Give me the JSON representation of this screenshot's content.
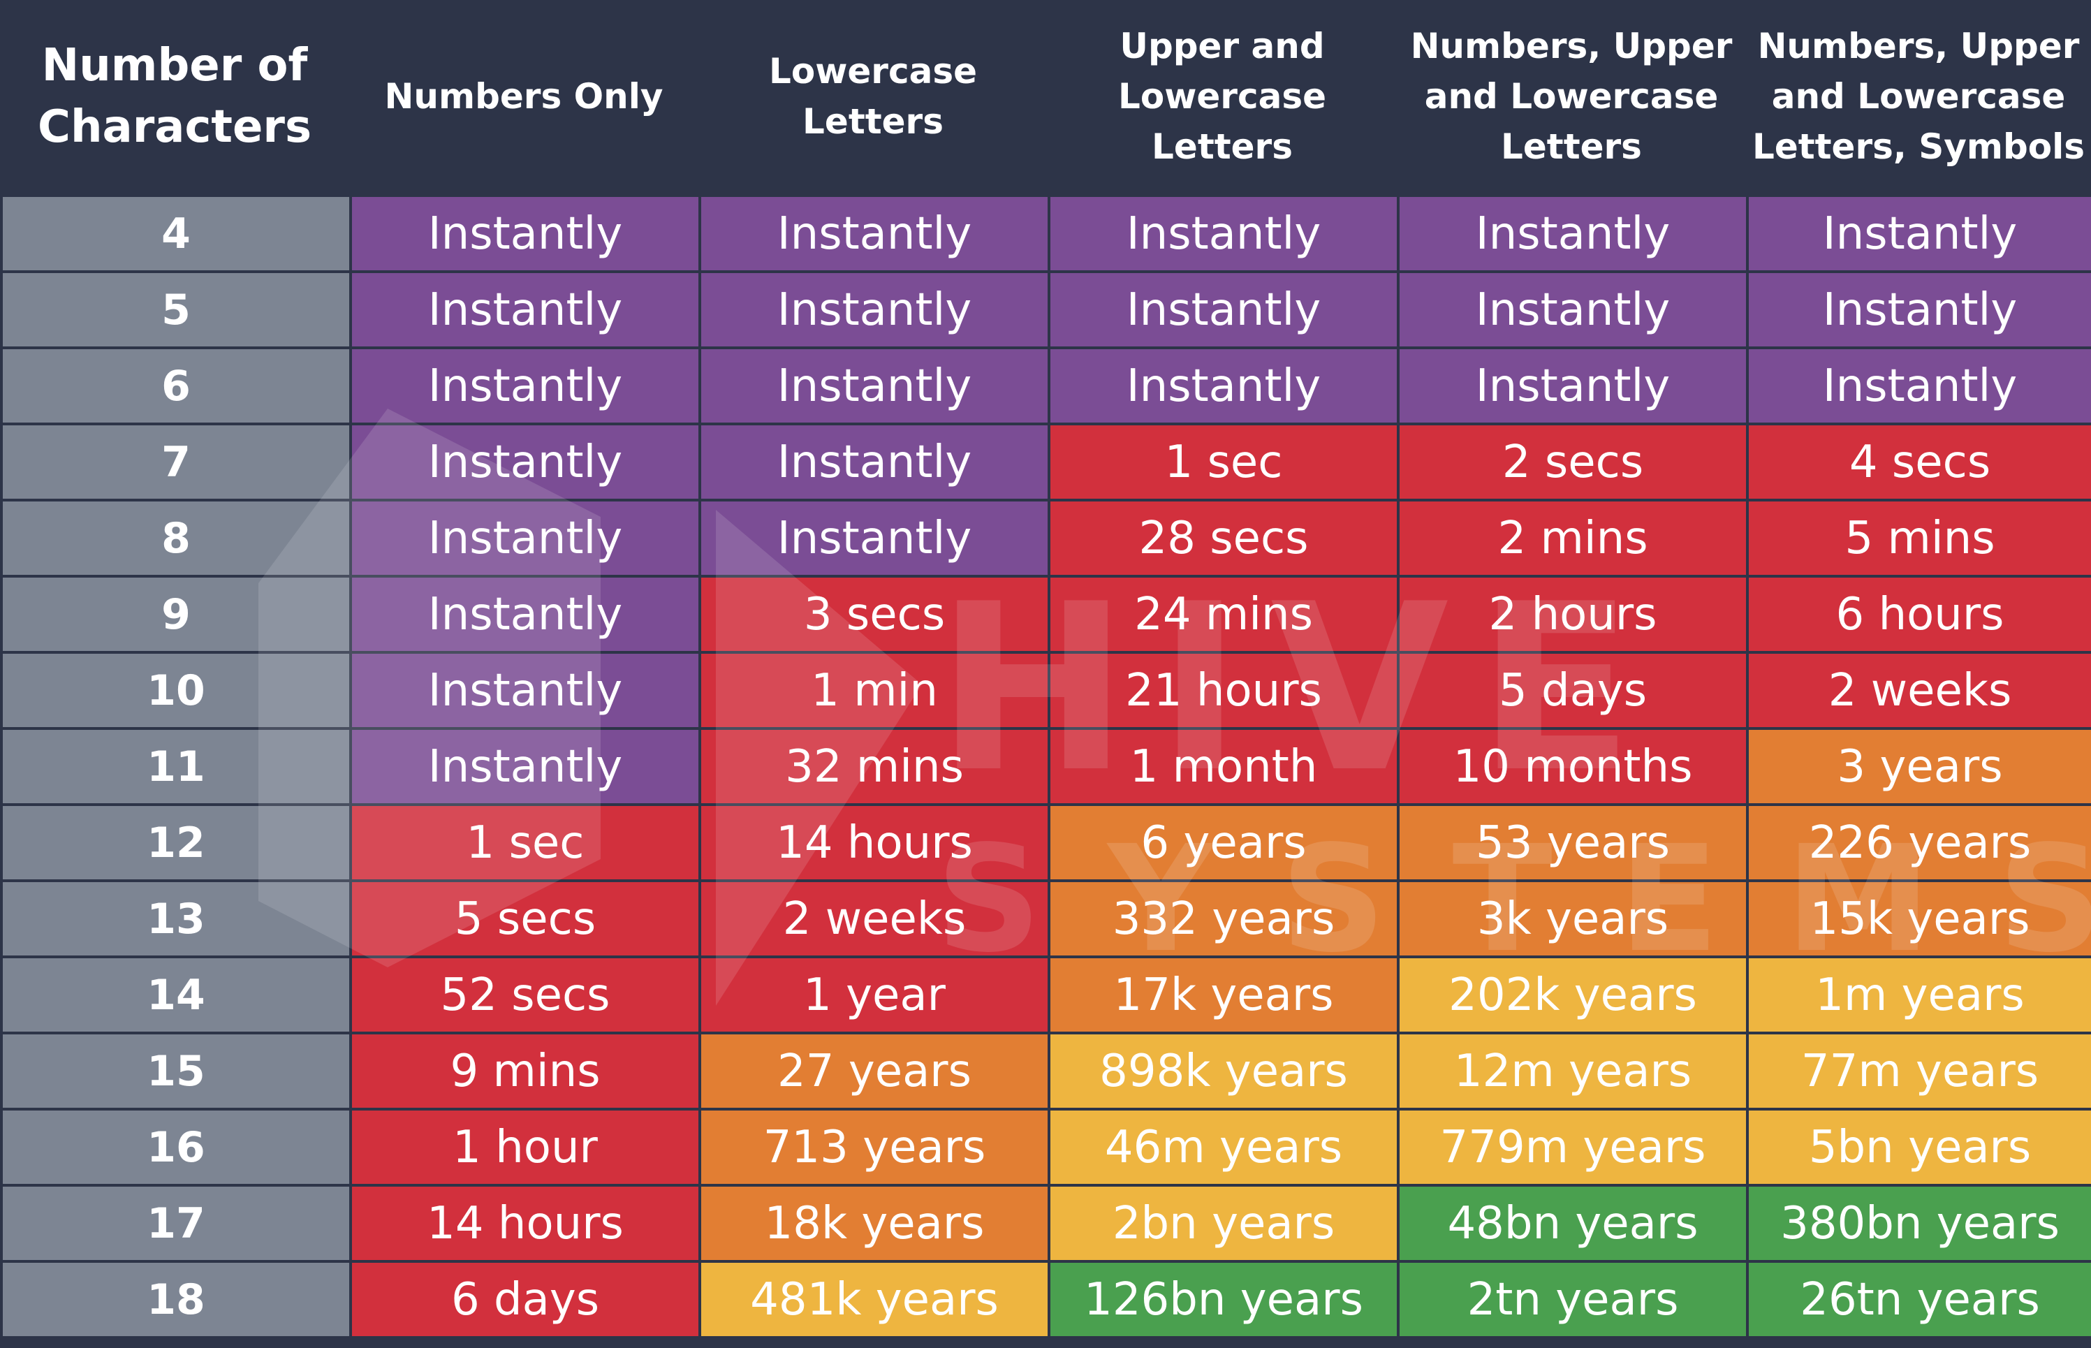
{
  "chart_data": {
    "type": "table",
    "columns": [
      "Number of\nCharacters",
      "Numbers Only",
      "Lowercase\nLetters",
      "Upper and\nLowercase\nLetters",
      "Numbers, Upper\nand Lowercase\nLetters",
      "Numbers, Upper\nand Lowercase\nLetters, Symbols"
    ],
    "rows": [
      {
        "chars": "4",
        "values": [
          "Instantly",
          "Instantly",
          "Instantly",
          "Instantly",
          "Instantly"
        ],
        "levels": [
          "purple",
          "purple",
          "purple",
          "purple",
          "purple"
        ]
      },
      {
        "chars": "5",
        "values": [
          "Instantly",
          "Instantly",
          "Instantly",
          "Instantly",
          "Instantly"
        ],
        "levels": [
          "purple",
          "purple",
          "purple",
          "purple",
          "purple"
        ]
      },
      {
        "chars": "6",
        "values": [
          "Instantly",
          "Instantly",
          "Instantly",
          "Instantly",
          "Instantly"
        ],
        "levels": [
          "purple",
          "purple",
          "purple",
          "purple",
          "purple"
        ]
      },
      {
        "chars": "7",
        "values": [
          "Instantly",
          "Instantly",
          "1 sec",
          "2 secs",
          "4 secs"
        ],
        "levels": [
          "purple",
          "purple",
          "red",
          "red",
          "red"
        ]
      },
      {
        "chars": "8",
        "values": [
          "Instantly",
          "Instantly",
          "28 secs",
          "2 mins",
          "5 mins"
        ],
        "levels": [
          "purple",
          "purple",
          "red",
          "red",
          "red"
        ]
      },
      {
        "chars": "9",
        "values": [
          "Instantly",
          "3 secs",
          "24 mins",
          "2 hours",
          "6 hours"
        ],
        "levels": [
          "purple",
          "red",
          "red",
          "red",
          "red"
        ]
      },
      {
        "chars": "10",
        "values": [
          "Instantly",
          "1 min",
          "21 hours",
          "5 days",
          "2 weeks"
        ],
        "levels": [
          "purple",
          "red",
          "red",
          "red",
          "red"
        ]
      },
      {
        "chars": "11",
        "values": [
          "Instantly",
          "32 mins",
          "1 month",
          "10 months",
          "3 years"
        ],
        "levels": [
          "purple",
          "red",
          "red",
          "red",
          "orange"
        ]
      },
      {
        "chars": "12",
        "values": [
          "1 sec",
          "14 hours",
          "6 years",
          "53 years",
          "226 years"
        ],
        "levels": [
          "red",
          "red",
          "orange",
          "orange",
          "orange"
        ]
      },
      {
        "chars": "13",
        "values": [
          "5 secs",
          "2 weeks",
          "332 years",
          "3k years",
          "15k years"
        ],
        "levels": [
          "red",
          "red",
          "orange",
          "orange",
          "orange"
        ]
      },
      {
        "chars": "14",
        "values": [
          "52 secs",
          "1 year",
          "17k years",
          "202k years",
          "1m years"
        ],
        "levels": [
          "red",
          "red",
          "orange",
          "yellow",
          "yellow"
        ]
      },
      {
        "chars": "15",
        "values": [
          "9 mins",
          "27 years",
          "898k years",
          "12m years",
          "77m years"
        ],
        "levels": [
          "red",
          "orange",
          "yellow",
          "yellow",
          "yellow"
        ]
      },
      {
        "chars": "16",
        "values": [
          "1 hour",
          "713 years",
          "46m years",
          "779m years",
          "5bn years"
        ],
        "levels": [
          "red",
          "orange",
          "yellow",
          "yellow",
          "yellow"
        ]
      },
      {
        "chars": "17",
        "values": [
          "14 hours",
          "18k years",
          "2bn years",
          "48bn years",
          "380bn years"
        ],
        "levels": [
          "red",
          "orange",
          "yellow",
          "green",
          "green"
        ]
      },
      {
        "chars": "18",
        "values": [
          "6 days",
          "481k years",
          "126bn years",
          "2tn years",
          "26tn years"
        ],
        "levels": [
          "red",
          "yellow",
          "green",
          "green",
          "green"
        ]
      }
    ]
  },
  "colors": {
    "background": "#2d3448",
    "row_label": "#7d8593",
    "purple": "#7b4d95",
    "red": "#d2303d",
    "orange": "#e27e33",
    "yellow": "#eeb540",
    "green": "#4aa04f"
  },
  "watermark": {
    "line1": "HIVE",
    "line2": "SYSTEMS"
  }
}
